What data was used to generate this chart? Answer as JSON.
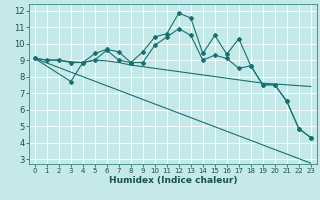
{
  "xlabel": "Humidex (Indice chaleur)",
  "bg_color": "#c5e8e8",
  "grid_color": "#ffffff",
  "line_color": "#1a7070",
  "xlim": [
    -0.5,
    23.5
  ],
  "ylim": [
    2.7,
    12.4
  ],
  "xticks": [
    0,
    1,
    2,
    3,
    4,
    5,
    6,
    7,
    8,
    9,
    10,
    11,
    12,
    13,
    14,
    15,
    16,
    17,
    18,
    19,
    20,
    21,
    22,
    23
  ],
  "yticks": [
    3,
    4,
    5,
    6,
    7,
    8,
    9,
    10,
    11,
    12
  ],
  "line1_x": [
    0,
    1,
    2,
    3,
    4,
    5,
    6,
    7,
    8,
    9,
    10,
    11,
    12,
    13,
    14,
    15,
    16,
    17,
    18,
    19,
    20,
    21,
    22,
    23
  ],
  "line1_y": [
    9.1,
    9.0,
    9.0,
    8.85,
    8.85,
    9.4,
    9.65,
    9.5,
    8.85,
    9.5,
    10.4,
    10.6,
    11.85,
    11.55,
    9.4,
    10.5,
    9.35,
    10.3,
    8.65,
    7.5,
    7.5,
    6.5,
    4.85,
    4.3
  ],
  "line2_x": [
    0,
    1,
    2,
    3,
    4,
    5,
    6,
    7,
    8,
    9,
    10,
    11,
    12,
    13,
    14,
    15,
    16,
    17,
    18,
    19,
    20,
    21,
    22,
    23
  ],
  "line2_y": [
    9.1,
    9.0,
    9.0,
    8.9,
    8.85,
    9.0,
    8.95,
    8.85,
    8.7,
    8.6,
    8.5,
    8.4,
    8.3,
    8.2,
    8.1,
    8.0,
    7.9,
    7.8,
    7.7,
    7.6,
    7.55,
    7.5,
    7.45,
    7.4
  ],
  "line3_x": [
    0,
    23
  ],
  "line3_y": [
    9.1,
    2.75
  ],
  "line4_x": [
    0,
    3,
    4,
    5,
    6,
    7,
    8,
    9,
    10,
    11,
    12,
    13,
    14,
    15,
    16,
    17,
    18,
    19,
    20,
    21,
    22,
    23
  ],
  "line4_y": [
    9.1,
    7.7,
    8.85,
    9.0,
    9.6,
    9.0,
    8.85,
    8.85,
    9.9,
    10.4,
    10.9,
    10.5,
    9.0,
    9.3,
    9.1,
    8.5,
    8.65,
    7.5,
    7.5,
    6.5,
    4.85,
    4.3
  ],
  "xlabel_fontsize": 6.5,
  "tick_fontsize_x": 5.0,
  "tick_fontsize_y": 6.0,
  "tick_color": "#1a5050"
}
